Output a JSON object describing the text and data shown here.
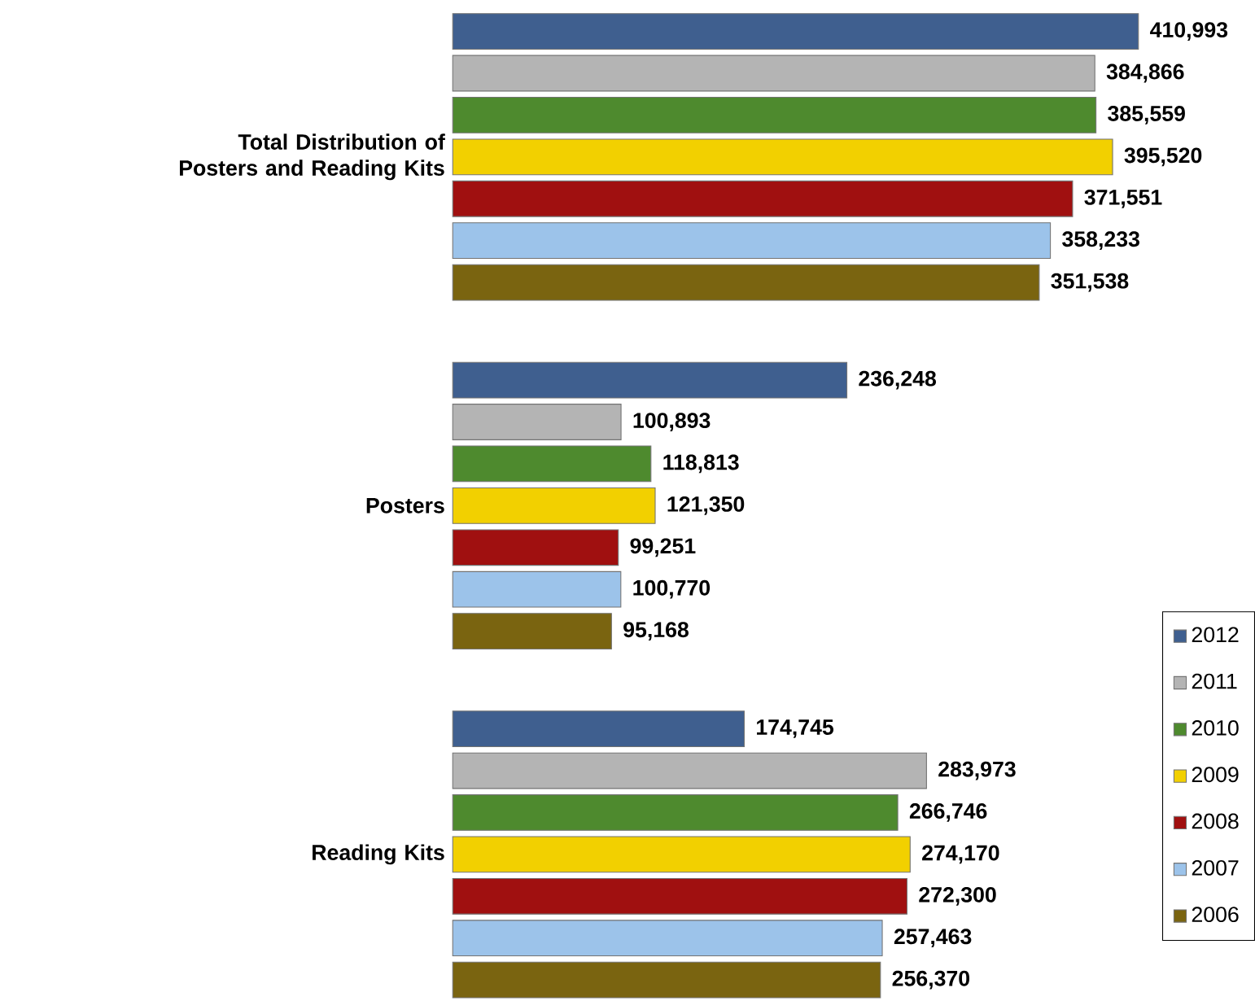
{
  "chart_data": {
    "type": "bar",
    "orientation": "horizontal",
    "legend": "bottom right",
    "categories": [
      "Total Distribution  of Posters and Reading Kits",
      "Posters",
      "Reading Kits"
    ],
    "series": [
      {
        "name": "2012",
        "color": "#3f5f8f",
        "values": [
          410993,
          236248,
          174745
        ],
        "value_labels": [
          "410,993",
          "236,248",
          "174,745"
        ]
      },
      {
        "name": "2011",
        "color": "#b4b4b4",
        "values": [
          384866,
          100893,
          283973
        ],
        "value_labels": [
          "384,866",
          "100,893",
          "283,973"
        ]
      },
      {
        "name": "2010",
        "color": "#4e8a2e",
        "values": [
          385559,
          118813,
          266746
        ],
        "value_labels": [
          "385,559",
          "118,813",
          "266,746"
        ]
      },
      {
        "name": "2009",
        "color": "#f2d000",
        "values": [
          395520,
          121350,
          274170
        ],
        "value_labels": [
          "395,520",
          "121,350",
          "274,170"
        ]
      },
      {
        "name": "2008",
        "color": "#a01010",
        "values": [
          371551,
          99251,
          272300
        ],
        "value_labels": [
          "371,551",
          "99,251",
          "272,300"
        ]
      },
      {
        "name": "2007",
        "color": "#9cc3ea",
        "values": [
          358233,
          100770,
          257463
        ],
        "value_labels": [
          "358,233",
          "100,770",
          "257,463"
        ]
      },
      {
        "name": "2006",
        "color": "#7a6410",
        "values": [
          351538,
          95168,
          256370
        ],
        "value_labels": [
          "351,538",
          "95,168",
          "256,370"
        ]
      }
    ]
  }
}
